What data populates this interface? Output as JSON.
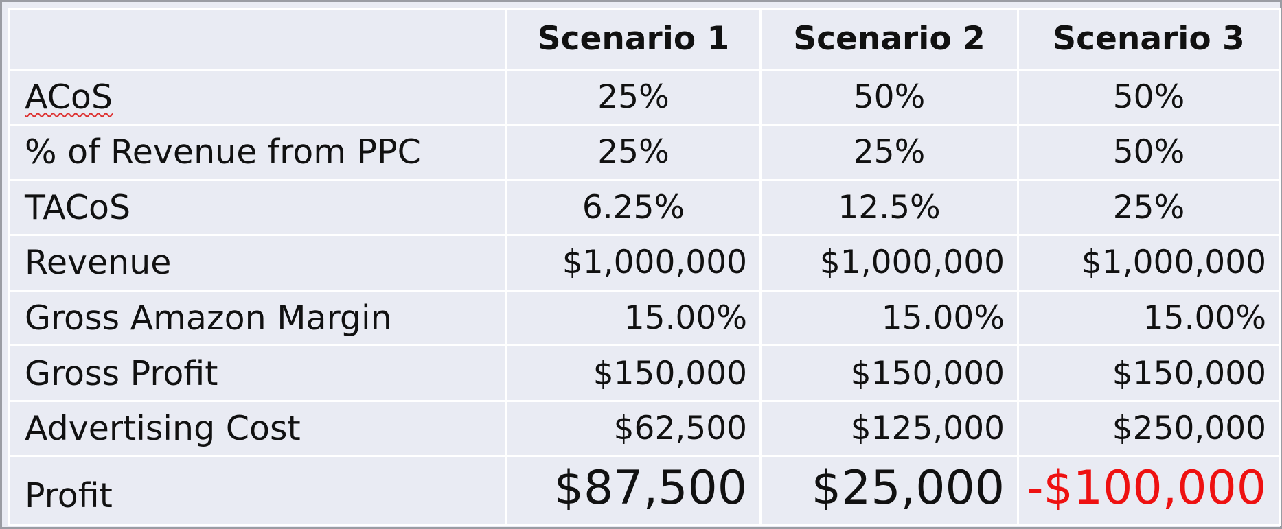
{
  "table": {
    "header": {
      "corner": "",
      "columns": [
        "Scenario 1",
        "Scenario 2",
        "Scenario 3"
      ]
    },
    "rows": [
      {
        "label": "ACoS",
        "values": [
          "25%",
          "50%",
          "50%"
        ]
      },
      {
        "label": "% of Revenue from PPC",
        "values": [
          "25%",
          "25%",
          "50%"
        ]
      },
      {
        "label": "TACoS",
        "values": [
          "6.25%",
          "12.5%",
          "25%"
        ]
      },
      {
        "label": "Revenue",
        "values": [
          "$1,000,000",
          "$1,000,000",
          "$1,000,000"
        ]
      },
      {
        "label": "Gross Amazon Margin",
        "values": [
          "15.00%",
          "15.00%",
          "15.00%"
        ]
      },
      {
        "label": "Gross Profit",
        "values": [
          "$150,000",
          "$150,000",
          "$150,000"
        ]
      },
      {
        "label": "Advertising Cost",
        "values": [
          "$62,500",
          "$125,000",
          "$250,000"
        ]
      },
      {
        "label": "Profit",
        "values": [
          "$87,500",
          "$25,000",
          "-$100,000"
        ]
      }
    ]
  },
  "colors": {
    "background": "#e9ebf3",
    "gridlines": "#ffffff",
    "negative_value": "#ee1111",
    "text": "#111111"
  }
}
